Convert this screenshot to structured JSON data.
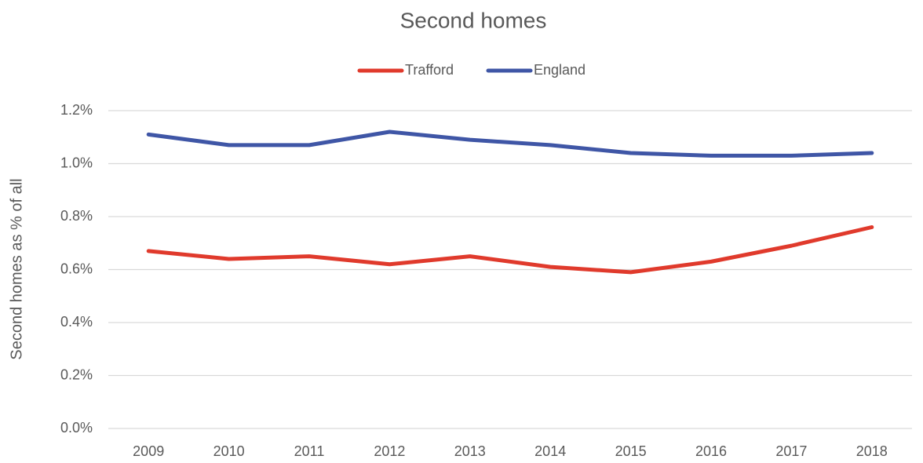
{
  "chart_data": {
    "type": "line",
    "title": "Second homes",
    "y_label": "Second homes as % of all",
    "categories": [
      "2009",
      "2010",
      "2011",
      "2012",
      "2013",
      "2014",
      "2015",
      "2016",
      "2017",
      "2018"
    ],
    "series": [
      {
        "name": "Trafford",
        "color": "#e03a2c",
        "values": [
          0.67,
          0.64,
          0.65,
          0.62,
          0.65,
          0.61,
          0.59,
          0.63,
          0.69,
          0.76
        ]
      },
      {
        "name": "England",
        "color": "#3f56a6",
        "values": [
          1.11,
          1.07,
          1.07,
          1.12,
          1.09,
          1.07,
          1.04,
          1.03,
          1.03,
          1.04
        ]
      }
    ],
    "ylim": [
      0,
      1.2
    ],
    "yticks": [
      {
        "value": 0,
        "label": "0.0%"
      },
      {
        "value": 0.2,
        "label": "0.2%"
      },
      {
        "value": 0.4,
        "label": "0.4%"
      },
      {
        "value": 0.6,
        "label": "0.6%"
      },
      {
        "value": 0.8,
        "label": "0.8%"
      },
      {
        "value": 1.0,
        "label": "1.0%"
      },
      {
        "value": 1.2,
        "label": "1.2%"
      }
    ],
    "grid": true,
    "legend": "top"
  }
}
